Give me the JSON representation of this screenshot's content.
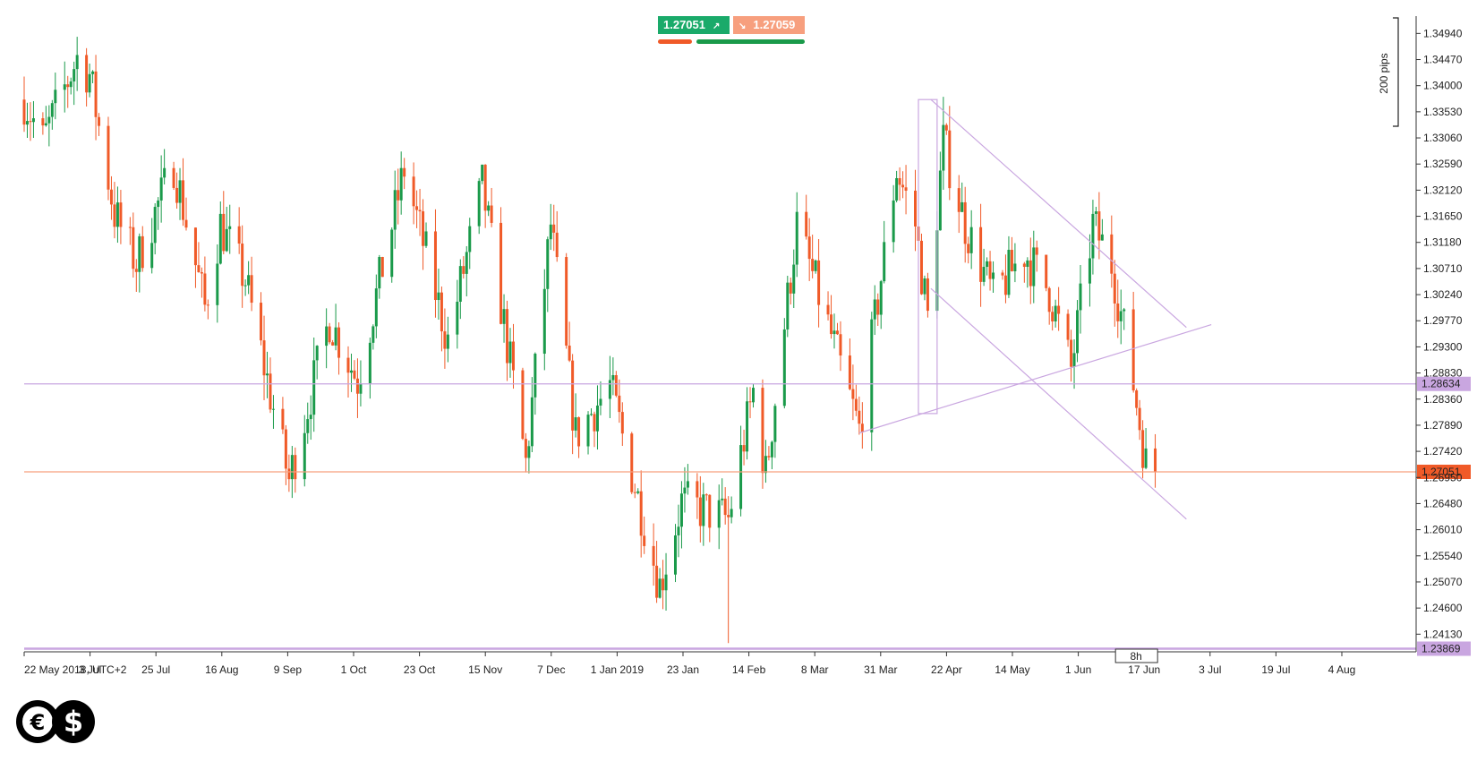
{
  "quotes": {
    "bid": "1.27051",
    "ask": "1.27059",
    "bid_color": "#1aaa6a",
    "ask_color": "#f79f7e"
  },
  "ruler": {
    "label": "200 pips"
  },
  "timeframe_label": "8h",
  "chart_data": {
    "type": "candlestick",
    "ylim": [
      1.2363,
      1.3517
    ],
    "y_ticks": [
      "1.34940",
      "1.34470",
      "1.34000",
      "1.33530",
      "1.33060",
      "1.32590",
      "1.32120",
      "1.31650",
      "1.31180",
      "1.30710",
      "1.30240",
      "1.29770",
      "1.29300",
      "1.28830",
      "1.28360",
      "1.27890",
      "1.27420",
      "1.26950",
      "1.26480",
      "1.26010",
      "1.25540",
      "1.25070",
      "1.24600",
      "1.24130"
    ],
    "x_ticks": [
      "22 May 2018, UTC+2",
      "3 Jul",
      "25 Jul",
      "16 Aug",
      "9 Sep",
      "1 Oct",
      "23 Oct",
      "15 Nov",
      "7 Dec",
      "1 Jan 2019",
      "23 Jan",
      "14 Feb",
      "8 Mar",
      "31 Mar",
      "22 Apr",
      "14 May",
      "1 Jun",
      "17 Jun",
      "3 Jul",
      "19 Jul",
      "4 Aug"
    ],
    "x_range": [
      "2018-05-22",
      "2019-08-08"
    ],
    "up_color": "#1a9a4a",
    "down_color": "#f05a28",
    "line_color": "#c9a6e0",
    "current_line_color": "#f79f7e",
    "horizontal_levels": [
      {
        "value": 1.28634,
        "label": "1.28634",
        "color": "#c9a6e0"
      },
      {
        "value": 1.27051,
        "label": "1.27051",
        "color": "#f05a28"
      },
      {
        "value": 1.23869,
        "label": "1.23869",
        "color": "#c9a6e0"
      }
    ],
    "trendlines": [
      {
        "from": [
          "2019-03-09",
          1.3375
        ],
        "to": [
          "2019-05-30",
          1.2965
        ]
      },
      {
        "from": [
          "2019-03-09",
          1.3035
        ],
        "to": [
          "2019-05-30",
          1.262
        ]
      },
      {
        "from": [
          "2019-02-14",
          1.2775
        ],
        "to": [
          "2019-06-07",
          1.297
        ]
      }
    ],
    "rectangles": [
      {
        "from": [
          "2019-03-05",
          1.3375
        ],
        "to": [
          "2019-03-11",
          1.281
        ]
      }
    ],
    "key_points": [
      {
        "date": "2018-05-22",
        "price": 1.3375
      },
      {
        "date": "2018-05-28",
        "price": 1.33
      },
      {
        "date": "2018-06-08",
        "price": 1.345
      },
      {
        "date": "2018-06-12",
        "price": 1.342
      },
      {
        "date": "2018-06-20",
        "price": 1.317
      },
      {
        "date": "2018-06-27",
        "price": 1.308
      },
      {
        "date": "2018-07-09",
        "price": 1.326
      },
      {
        "date": "2018-07-19",
        "price": 1.3
      },
      {
        "date": "2018-07-24",
        "price": 1.315
      },
      {
        "date": "2018-08-01",
        "price": 1.305
      },
      {
        "date": "2018-08-15",
        "price": 1.269
      },
      {
        "date": "2018-08-28",
        "price": 1.298
      },
      {
        "date": "2018-09-06",
        "price": 1.287
      },
      {
        "date": "2018-09-21",
        "price": 1.325
      },
      {
        "date": "2018-10-05",
        "price": 1.294
      },
      {
        "date": "2018-10-16",
        "price": 1.322
      },
      {
        "date": "2018-10-30",
        "price": 1.272
      },
      {
        "date": "2018-11-07",
        "price": 1.315
      },
      {
        "date": "2018-11-15",
        "price": 1.277
      },
      {
        "date": "2018-11-26",
        "price": 1.286
      },
      {
        "date": "2018-12-12",
        "price": 1.25
      },
      {
        "date": "2018-12-19",
        "price": 1.265
      },
      {
        "date": "2019-01-03",
        "price": 1.262
      },
      {
        "date": "2019-01-11",
        "price": 1.285
      },
      {
        "date": "2019-01-15",
        "price": 1.27
      },
      {
        "date": "2019-01-25",
        "price": 1.315
      },
      {
        "date": "2019-02-05",
        "price": 1.295
      },
      {
        "date": "2019-02-14",
        "price": 1.278
      },
      {
        "date": "2019-02-26",
        "price": 1.325
      },
      {
        "date": "2019-03-04",
        "price": 1.315
      },
      {
        "date": "2019-03-08",
        "price": 1.298
      },
      {
        "date": "2019-03-13",
        "price": 1.33
      },
      {
        "date": "2019-03-20",
        "price": 1.315
      },
      {
        "date": "2019-03-29",
        "price": 1.302
      },
      {
        "date": "2019-04-08",
        "price": 1.31
      },
      {
        "date": "2019-04-16",
        "price": 1.303
      },
      {
        "date": "2019-04-23",
        "price": 1.289
      },
      {
        "date": "2019-04-30",
        "price": 1.315
      },
      {
        "date": "2019-05-06",
        "price": 1.308
      },
      {
        "date": "2019-05-12",
        "price": 1.29
      },
      {
        "date": "2019-05-17",
        "price": 1.272
      },
      {
        "date": "2019-05-20",
        "price": 1.2705
      }
    ],
    "extremes": [
      {
        "date": "2019-01-03",
        "low": 1.2397
      },
      {
        "date": "2019-03-13",
        "high": 1.338
      }
    ]
  }
}
